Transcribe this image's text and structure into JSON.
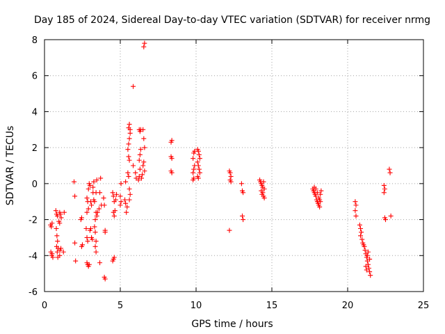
{
  "chart_data": {
    "type": "scatter",
    "title": "Day 185 of 2024, Sidereal Day-to-day VTEC variation (SDTVAR) for receiver nrmg",
    "xlabel": "GPS time / hours",
    "ylabel": "SDTVAR / TECUs",
    "xlim": [
      0,
      25
    ],
    "ylim": [
      -6,
      8
    ],
    "xticks": [
      0,
      5,
      10,
      15,
      20,
      25
    ],
    "yticks": [
      -6,
      -4,
      -2,
      0,
      2,
      4,
      6,
      8
    ],
    "grid": true,
    "marker": "+",
    "color": "#ff0000",
    "series": [
      {
        "name": "SDTVAR",
        "points": [
          [
            0.4,
            -2.3
          ],
          [
            0.45,
            -2.4
          ],
          [
            0.5,
            -2.2
          ],
          [
            0.42,
            -3.8
          ],
          [
            0.48,
            -4.0
          ],
          [
            0.55,
            -4.1
          ],
          [
            0.5,
            -3.9
          ],
          [
            0.75,
            -1.5
          ],
          [
            0.8,
            -1.7
          ],
          [
            0.85,
            -1.8
          ],
          [
            0.78,
            -2.5
          ],
          [
            0.82,
            -2.9
          ],
          [
            0.86,
            -3.2
          ],
          [
            0.8,
            -3.5
          ],
          [
            0.84,
            -3.8
          ],
          [
            0.88,
            -4.1
          ],
          [
            0.9,
            -3.6
          ],
          [
            1.0,
            -1.6
          ],
          [
            1.05,
            -1.7
          ],
          [
            1.1,
            -1.9
          ],
          [
            0.95,
            -2.1
          ],
          [
            1.0,
            -2.2
          ],
          [
            1.02,
            -3.7
          ],
          [
            1.08,
            -3.6
          ],
          [
            1.0,
            -4.0
          ],
          [
            1.25,
            -3.8
          ],
          [
            1.3,
            -1.6
          ],
          [
            1.95,
            0.1
          ],
          [
            2.0,
            -0.7
          ],
          [
            2.0,
            -3.3
          ],
          [
            2.05,
            -4.3
          ],
          [
            2.4,
            -2.0
          ],
          [
            2.45,
            -1.9
          ],
          [
            2.5,
            -3.4
          ],
          [
            2.45,
            -3.5
          ],
          [
            2.75,
            -2.5
          ],
          [
            2.8,
            -3.0
          ],
          [
            2.85,
            -3.2
          ],
          [
            2.8,
            -4.4
          ],
          [
            2.85,
            -4.5
          ],
          [
            2.9,
            -4.6
          ],
          [
            2.95,
            -4.5
          ],
          [
            2.8,
            -0.8
          ],
          [
            2.85,
            -1.0
          ],
          [
            2.9,
            -1.4
          ],
          [
            2.8,
            -1.6
          ],
          [
            2.9,
            -0.3
          ],
          [
            2.95,
            0.0
          ],
          [
            3.0,
            -0.1
          ],
          [
            3.05,
            -1.0
          ],
          [
            3.1,
            -1.2
          ],
          [
            3.05,
            -2.5
          ],
          [
            3.0,
            -2.6
          ],
          [
            3.1,
            -3.0
          ],
          [
            3.15,
            -3.1
          ],
          [
            3.2,
            -0.2
          ],
          [
            3.25,
            0.1
          ],
          [
            3.2,
            -0.5
          ],
          [
            3.25,
            -0.9
          ],
          [
            3.3,
            -1.0
          ],
          [
            3.3,
            -2.4
          ],
          [
            3.35,
            -2.7
          ],
          [
            3.4,
            -3.2
          ],
          [
            3.35,
            -3.5
          ],
          [
            3.4,
            -3.8
          ],
          [
            3.35,
            -2.0
          ],
          [
            3.4,
            -1.6
          ],
          [
            3.45,
            0.2
          ],
          [
            3.4,
            -0.5
          ],
          [
            3.45,
            -1.8
          ],
          [
            3.5,
            -1.6
          ],
          [
            3.7,
            0.3
          ],
          [
            3.65,
            -0.5
          ],
          [
            3.6,
            -1.4
          ],
          [
            3.65,
            -4.4
          ],
          [
            3.75,
            -1.2
          ],
          [
            3.9,
            -0.8
          ],
          [
            3.95,
            -1.2
          ],
          [
            4.0,
            -2.6
          ],
          [
            4.0,
            -2.7
          ],
          [
            3.95,
            -5.2
          ],
          [
            4.0,
            -5.3
          ],
          [
            4.5,
            -0.5
          ],
          [
            4.55,
            -0.7
          ],
          [
            4.6,
            -1.0
          ],
          [
            4.55,
            -1.6
          ],
          [
            4.6,
            -1.8
          ],
          [
            4.65,
            -1.5
          ],
          [
            4.7,
            -0.9
          ],
          [
            4.75,
            -0.6
          ],
          [
            4.5,
            -4.3
          ],
          [
            4.55,
            -4.2
          ],
          [
            4.6,
            -4.1
          ],
          [
            5.0,
            -0.7
          ],
          [
            5.05,
            -1.0
          ],
          [
            5.0,
            -1.2
          ],
          [
            5.05,
            0.0
          ],
          [
            5.3,
            -0.9
          ],
          [
            5.35,
            -1.1
          ],
          [
            5.4,
            -1.6
          ],
          [
            5.45,
            -1.3
          ],
          [
            5.35,
            0.1
          ],
          [
            5.5,
            1.9
          ],
          [
            5.55,
            2.2
          ],
          [
            5.6,
            2.5
          ],
          [
            5.65,
            2.8
          ],
          [
            5.55,
            3.1
          ],
          [
            5.6,
            3.3
          ],
          [
            5.65,
            3.0
          ],
          [
            5.55,
            1.5
          ],
          [
            5.6,
            1.3
          ],
          [
            5.5,
            0.6
          ],
          [
            5.55,
            0.4
          ],
          [
            5.6,
            -0.3
          ],
          [
            5.65,
            -0.6
          ],
          [
            5.6,
            -0.9
          ],
          [
            5.85,
            5.4
          ],
          [
            5.85,
            1.0
          ],
          [
            6.0,
            0.6
          ],
          [
            6.05,
            0.3
          ],
          [
            6.2,
            0.2
          ],
          [
            6.25,
            0.4
          ],
          [
            6.3,
            0.8
          ],
          [
            6.25,
            1.3
          ],
          [
            6.3,
            1.6
          ],
          [
            6.35,
            1.9
          ],
          [
            6.25,
            3.0
          ],
          [
            6.3,
            2.9
          ],
          [
            6.35,
            3.0
          ],
          [
            6.5,
            3.0
          ],
          [
            6.4,
            0.3
          ],
          [
            6.45,
            0.5
          ],
          [
            6.5,
            1.0
          ],
          [
            6.55,
            1.2
          ],
          [
            6.6,
            2.0
          ],
          [
            6.55,
            2.5
          ],
          [
            6.6,
            0.7
          ],
          [
            6.55,
            7.6
          ],
          [
            6.6,
            7.8
          ],
          [
            8.35,
            2.3
          ],
          [
            8.4,
            2.4
          ],
          [
            8.35,
            1.5
          ],
          [
            8.4,
            1.4
          ],
          [
            8.35,
            0.7
          ],
          [
            8.4,
            0.6
          ],
          [
            9.8,
            0.2
          ],
          [
            9.85,
            0.3
          ],
          [
            9.8,
            0.6
          ],
          [
            9.85,
            0.8
          ],
          [
            9.9,
            1.0
          ],
          [
            9.8,
            1.4
          ],
          [
            9.85,
            1.7
          ],
          [
            9.9,
            1.8
          ],
          [
            10.1,
            1.9
          ],
          [
            10.15,
            1.8
          ],
          [
            10.2,
            1.6
          ],
          [
            10.25,
            1.4
          ],
          [
            10.1,
            1.2
          ],
          [
            10.15,
            1.0
          ],
          [
            10.2,
            0.8
          ],
          [
            10.25,
            0.6
          ],
          [
            10.1,
            0.4
          ],
          [
            10.15,
            0.3
          ],
          [
            12.2,
            0.7
          ],
          [
            12.25,
            0.6
          ],
          [
            12.3,
            0.4
          ],
          [
            12.25,
            0.2
          ],
          [
            12.3,
            0.1
          ],
          [
            12.2,
            -2.6
          ],
          [
            13.0,
            0.0
          ],
          [
            13.05,
            -0.4
          ],
          [
            13.1,
            -0.5
          ],
          [
            13.05,
            -1.8
          ],
          [
            13.1,
            -2.0
          ],
          [
            14.2,
            0.2
          ],
          [
            14.25,
            0.1
          ],
          [
            14.3,
            0.0
          ],
          [
            14.35,
            -0.1
          ],
          [
            14.4,
            -0.2
          ],
          [
            14.45,
            0.1
          ],
          [
            14.5,
            -0.3
          ],
          [
            14.4,
            -0.5
          ],
          [
            14.45,
            -0.7
          ],
          [
            14.5,
            -0.8
          ],
          [
            14.35,
            -0.6
          ],
          [
            14.3,
            -0.4
          ],
          [
            17.7,
            -0.3
          ],
          [
            17.75,
            -0.4
          ],
          [
            17.8,
            -0.5
          ],
          [
            17.85,
            -0.6
          ],
          [
            17.9,
            -0.7
          ],
          [
            17.95,
            -0.9
          ],
          [
            18.0,
            -1.0
          ],
          [
            18.05,
            -1.1
          ],
          [
            18.1,
            -1.2
          ],
          [
            18.15,
            -1.3
          ],
          [
            17.8,
            -0.2
          ],
          [
            17.9,
            -0.3
          ],
          [
            18.0,
            -0.5
          ],
          [
            18.1,
            -0.8
          ],
          [
            18.2,
            -0.6
          ],
          [
            18.25,
            -0.4
          ],
          [
            18.2,
            -1.0
          ],
          [
            18.15,
            -0.9
          ],
          [
            20.5,
            -1.0
          ],
          [
            20.55,
            -1.2
          ],
          [
            20.5,
            -1.5
          ],
          [
            20.55,
            -1.8
          ],
          [
            20.8,
            -2.3
          ],
          [
            20.85,
            -2.5
          ],
          [
            20.9,
            -2.7
          ],
          [
            20.85,
            -2.9
          ],
          [
            20.95,
            -3.1
          ],
          [
            21.0,
            -3.3
          ],
          [
            21.05,
            -3.4
          ],
          [
            21.1,
            -3.5
          ],
          [
            21.15,
            -3.7
          ],
          [
            21.2,
            -3.9
          ],
          [
            21.25,
            -4.1
          ],
          [
            21.3,
            -4.3
          ],
          [
            21.35,
            -4.5
          ],
          [
            21.4,
            -4.7
          ],
          [
            21.45,
            -4.9
          ],
          [
            21.5,
            -5.1
          ],
          [
            21.2,
            -4.6
          ],
          [
            21.25,
            -4.8
          ],
          [
            21.3,
            -4.0
          ],
          [
            21.35,
            -3.8
          ],
          [
            21.45,
            -4.2
          ],
          [
            22.4,
            -0.1
          ],
          [
            22.45,
            -0.3
          ],
          [
            22.4,
            -0.5
          ],
          [
            22.45,
            -1.9
          ],
          [
            22.5,
            -2.0
          ],
          [
            22.75,
            0.8
          ],
          [
            22.8,
            0.6
          ],
          [
            22.85,
            -1.8
          ]
        ]
      }
    ]
  }
}
